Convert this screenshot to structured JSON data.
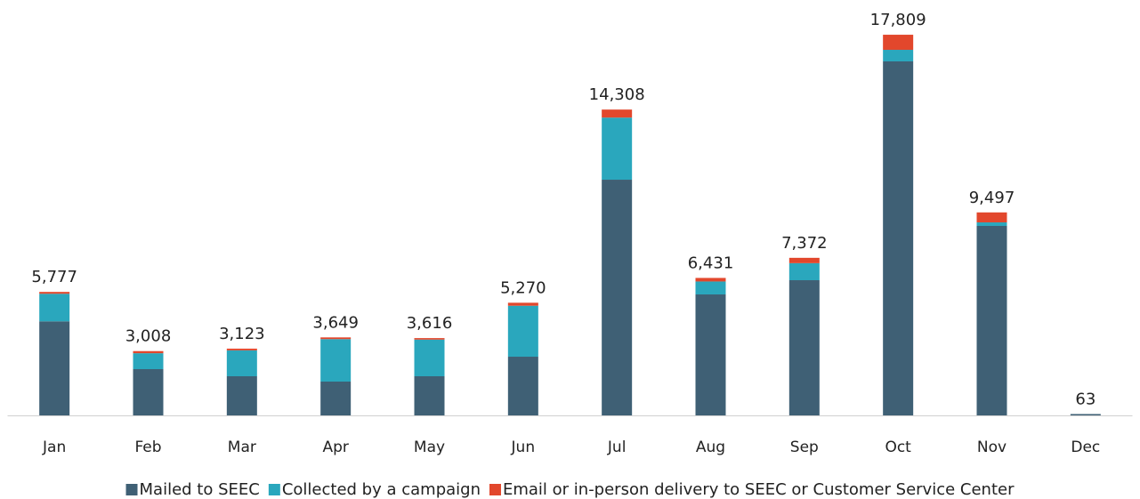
{
  "chart_data": {
    "type": "stacked_bar",
    "categories": [
      "Jan",
      "Feb",
      "Mar",
      "Apr",
      "May",
      "Jun",
      "Jul",
      "Aug",
      "Sep",
      "Oct",
      "Nov",
      "Dec"
    ],
    "series": [
      {
        "name": "Mailed to SEEC",
        "color": "#3f6075",
        "values": [
          4400,
          2164,
          1831,
          1581,
          1831,
          2746,
          11027,
          5659,
          6325,
          16562,
          8864,
          63
        ]
      },
      {
        "name": "Collected by a campaign",
        "color": "#2aa7bd",
        "values": [
          1290,
          744,
          1212,
          1988,
          1715,
          2384,
          2906,
          606,
          797,
          541,
          166,
          0
        ]
      },
      {
        "name": "Email or in-person delivery to SEEC or Customer Service Center",
        "color": "#e2472c",
        "values": [
          87,
          100,
          80,
          80,
          70,
          140,
          375,
          166,
          250,
          706,
          467,
          0
        ]
      }
    ],
    "totals": [
      5777,
      3008,
      3123,
      3649,
      3616,
      5270,
      14308,
      6431,
      7372,
      17809,
      9497,
      63
    ],
    "total_labels": [
      "5,777",
      "3,008",
      "3,123",
      "3,649",
      "3,616",
      "5,270",
      "14,308",
      "6,431",
      "7,372",
      "17,809",
      "9,497",
      "63"
    ],
    "ylim": [
      0,
      18000
    ],
    "legend": "bottom"
  }
}
